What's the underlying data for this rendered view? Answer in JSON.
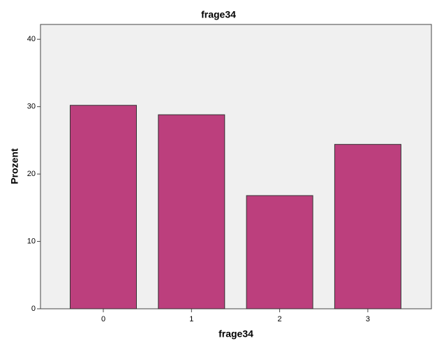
{
  "chart_data": {
    "type": "bar",
    "title": "frage34",
    "x_label": "frage34",
    "y_label": "Prozent",
    "categories": [
      "0",
      "1",
      "2",
      "3"
    ],
    "values": [
      30.2,
      28.8,
      16.8,
      24.4
    ],
    "color": "#bc3f7d",
    "ylim": [
      0,
      42.2
    ],
    "yticks": [
      0,
      10,
      20,
      30,
      40
    ],
    "grid": false
  }
}
